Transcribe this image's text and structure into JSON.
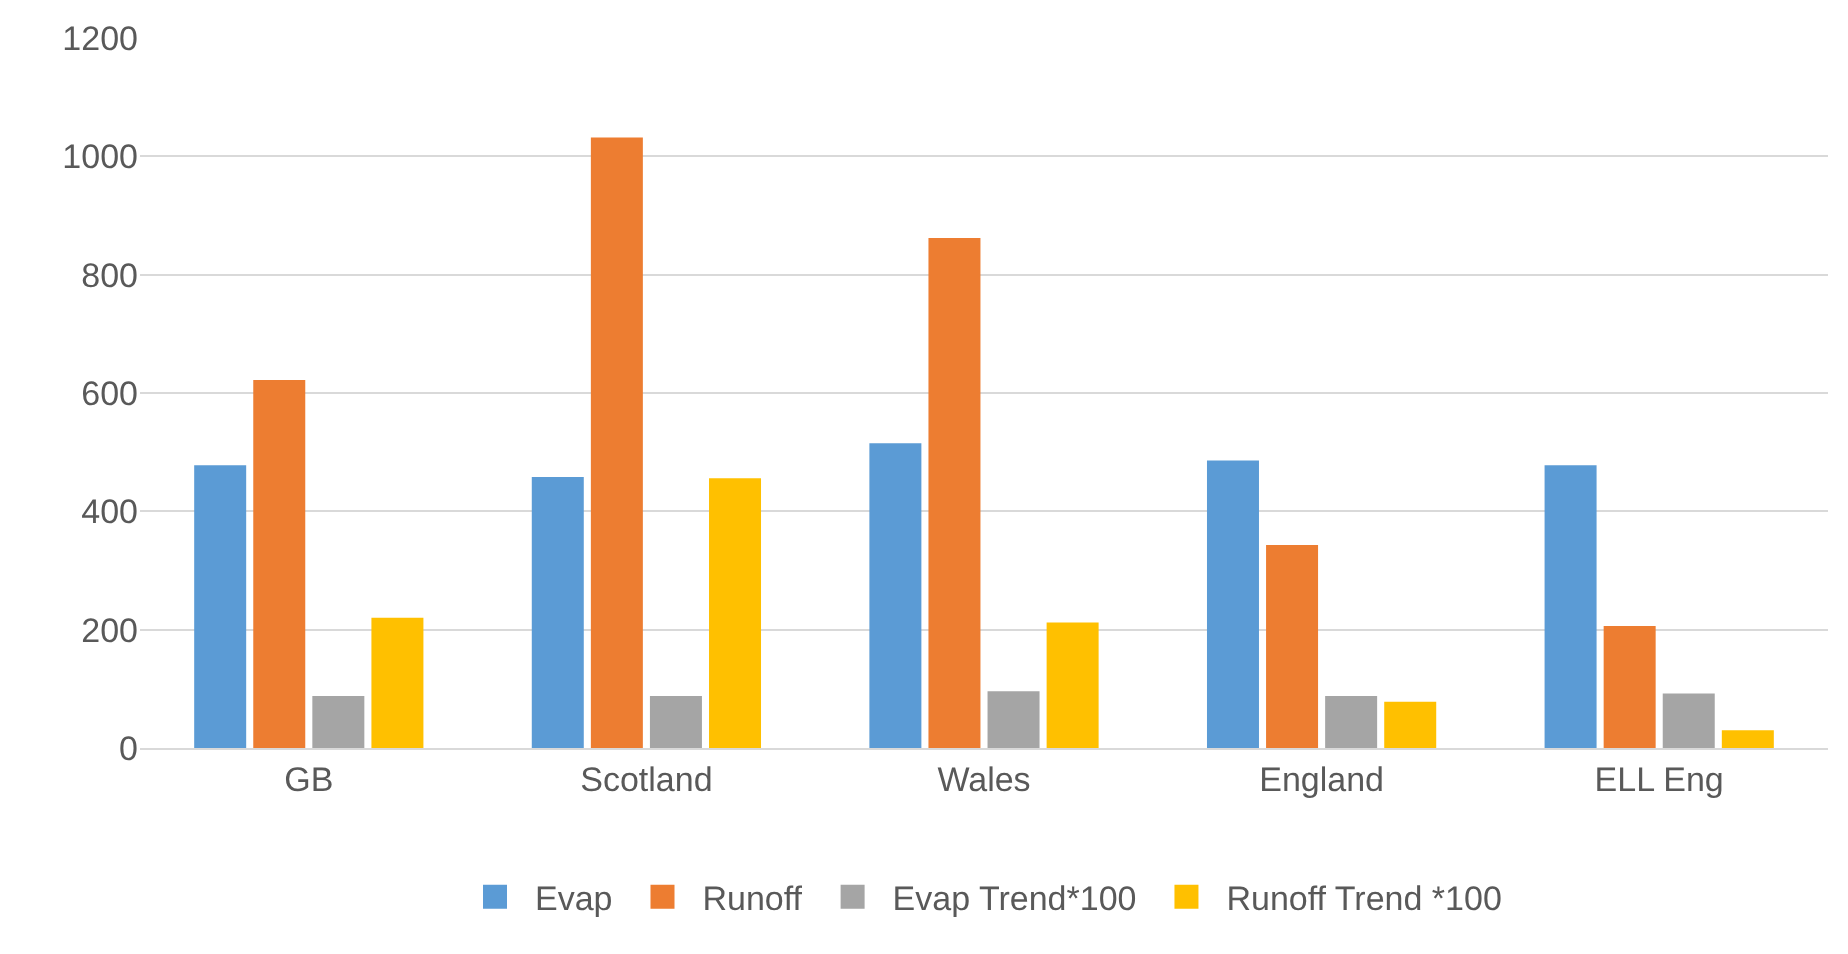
{
  "chart_data": {
    "type": "bar",
    "categories": [
      "GB",
      "Scotland",
      "Wales",
      "England",
      "ELL Eng"
    ],
    "series": [
      {
        "name": "Evap",
        "color": "#5b9bd5",
        "values": [
          478,
          458,
          515,
          486,
          478
        ]
      },
      {
        "name": "Runoff",
        "color": "#ed7d31",
        "values": [
          622,
          1032,
          862,
          343,
          206
        ]
      },
      {
        "name": "Evap Trend*100",
        "color": "#a5a5a5",
        "values": [
          88,
          88,
          96,
          88,
          92
        ]
      },
      {
        "name": "Runoff Trend *100",
        "color": "#ffc000",
        "values": [
          220,
          456,
          212,
          78,
          30
        ]
      }
    ],
    "ylim": [
      0,
      1200
    ],
    "yticks": [
      0,
      200,
      400,
      600,
      800,
      1000,
      1200
    ],
    "grid": "y",
    "legend": "bottom"
  }
}
